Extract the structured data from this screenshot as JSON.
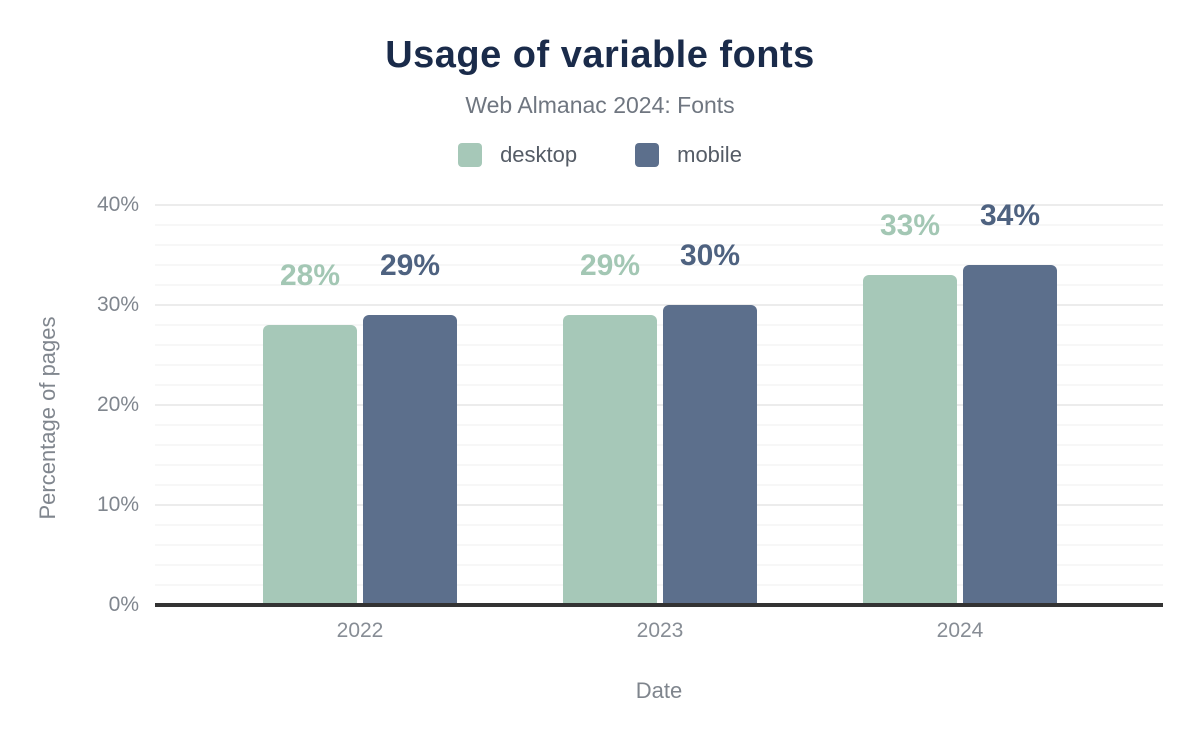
{
  "chart_data": {
    "type": "bar",
    "title": "Usage of variable fonts",
    "subtitle": "Web Almanac 2024: Fonts",
    "categories": [
      "2022",
      "2023",
      "2024"
    ],
    "series": [
      {
        "name": "desktop",
        "values": [
          28,
          29,
          33
        ],
        "color": "#a6c8b8",
        "label_color": "#a3c7b4"
      },
      {
        "name": "mobile",
        "values": [
          29,
          30,
          34
        ],
        "color": "#5c6f8c",
        "label_color": "#4e6280"
      }
    ],
    "value_suffix": "%",
    "xlabel": "Date",
    "ylabel": "Percentage of pages",
    "ylim": [
      0,
      40
    ],
    "y_major_step": 10,
    "y_minor_step": 2,
    "y_tick_suffix": "%",
    "grid": "horizontal-minor-and-major",
    "legend_position": "top",
    "legend_entries": [
      "desktop",
      "mobile"
    ]
  },
  "colors": {
    "title": "#1a2b4a",
    "subtitle": "#6f7680",
    "axis_text": "#80868e",
    "legend_text": "#555c66",
    "baseline": "#333333",
    "grid_major": "#ececec",
    "grid_minor": "#f7f7f7",
    "background": "#ffffff"
  }
}
